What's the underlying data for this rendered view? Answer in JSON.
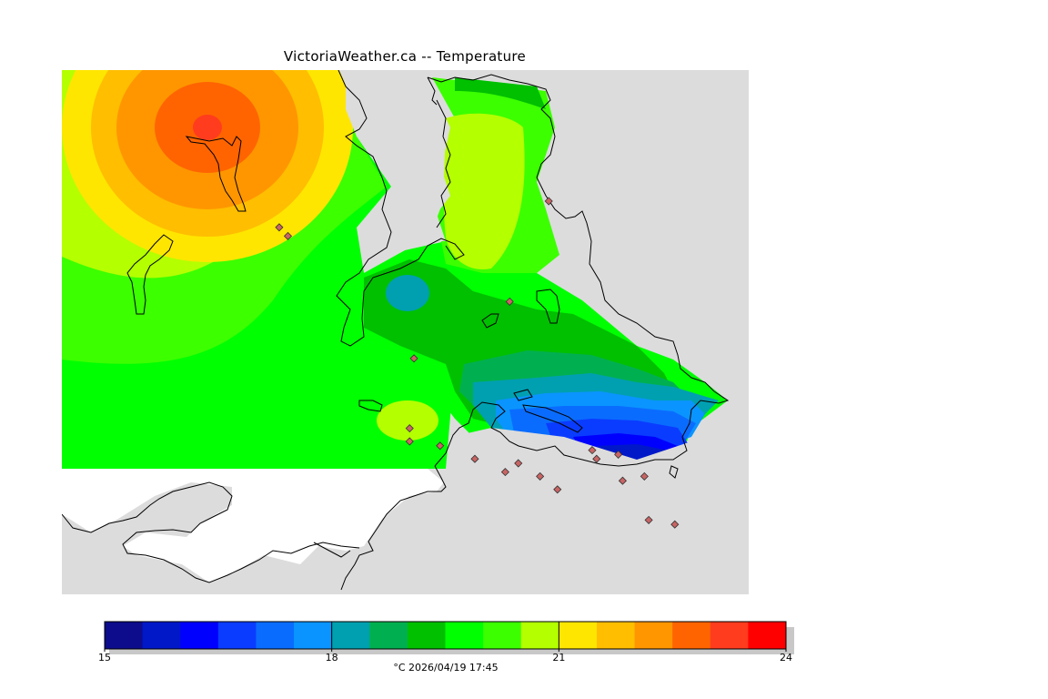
{
  "header": {
    "title": "VictoriaWeather.ca -- Temperature"
  },
  "legend": {
    "colors": [
      "#0c0c8c",
      "#0018c8",
      "#0000ff",
      "#0a3cff",
      "#0a6cff",
      "#0a94ff",
      "#00a0b0",
      "#00b050",
      "#00c000",
      "#00ff00",
      "#3cff00",
      "#b4ff00",
      "#ffe600",
      "#ffbe00",
      "#ff9600",
      "#ff6400",
      "#ff3c1e",
      "#ff0000"
    ],
    "min": 15,
    "max": 24,
    "ticks": [
      "15",
      "18",
      "21",
      "24"
    ],
    "unit_and_time": "°C  2026/04/19 17:45"
  },
  "stations": [
    {
      "lon": -123.8,
      "lat": 49.14
    },
    {
      "lon": -123.78,
      "lat": 49.12
    },
    {
      "lon": -123.18,
      "lat": 49.2
    },
    {
      "lon": -123.27,
      "lat": 48.97
    },
    {
      "lon": -123.49,
      "lat": 48.84
    },
    {
      "lon": -123.5,
      "lat": 48.68
    },
    {
      "lon": -123.5,
      "lat": 48.65
    },
    {
      "lon": -123.43,
      "lat": 48.64
    },
    {
      "lon": -123.35,
      "lat": 48.61
    },
    {
      "lon": -123.25,
      "lat": 48.6
    },
    {
      "lon": -123.28,
      "lat": 48.58
    },
    {
      "lon": -123.16,
      "lat": 48.54
    },
    {
      "lon": -123.2,
      "lat": 48.57
    },
    {
      "lon": -123.08,
      "lat": 48.63
    },
    {
      "lon": -123.07,
      "lat": 48.61
    },
    {
      "lon": -123.02,
      "lat": 48.62
    },
    {
      "lon": -123.01,
      "lat": 48.56
    },
    {
      "lon": -122.96,
      "lat": 48.57
    },
    {
      "lon": -122.95,
      "lat": 48.47
    },
    {
      "lon": -122.89,
      "lat": 48.46
    }
  ]
}
